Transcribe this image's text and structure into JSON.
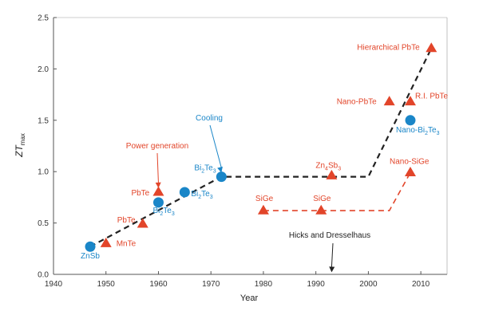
{
  "chart_data": {
    "type": "scatter",
    "title": "",
    "xlabel": "Year",
    "ylabel_main": "ZT",
    "ylabel_sub": "max",
    "xlim": [
      1940,
      2015
    ],
    "ylim": [
      0,
      2.5
    ],
    "xticks": [
      "1940",
      "1950",
      "1960",
      "1970",
      "1980",
      "1990",
      "2000",
      "2010"
    ],
    "xtick_values": [
      1940,
      1950,
      1960,
      1970,
      1980,
      1990,
      2000,
      2010
    ],
    "yticks": [
      "0.0",
      "0.5",
      "1.0",
      "1.5",
      "2.0",
      "2.5"
    ],
    "ytick_values": [
      0.0,
      0.5,
      1.0,
      1.5,
      2.0,
      2.5
    ],
    "grid": false,
    "colors": {
      "red": "#e2452a",
      "blue": "#1a86c8",
      "black": "#222222"
    },
    "series": [
      {
        "marker": "circle",
        "color": "blue",
        "points": [
          {
            "x": 1947,
            "y": 0.27,
            "label_parts": [
              {
                "t": "ZnSb"
              }
            ]
          },
          {
            "x": 1960,
            "y": 0.7,
            "label_parts": [
              {
                "t": "Bi"
              },
              {
                "t": "2",
                "sub": true
              },
              {
                "t": "Te"
              },
              {
                "t": "3",
                "sub": true
              }
            ]
          },
          {
            "x": 1965,
            "y": 0.8,
            "label_parts": [
              {
                "t": "Bi"
              },
              {
                "t": "2",
                "sub": true
              },
              {
                "t": "Te"
              },
              {
                "t": "3",
                "sub": true
              }
            ]
          },
          {
            "x": 1972,
            "y": 0.95,
            "label_parts": [
              {
                "t": "Bi"
              },
              {
                "t": "2",
                "sub": true
              },
              {
                "t": "Te"
              },
              {
                "t": "3",
                "sub": true
              }
            ]
          },
          {
            "x": 2008,
            "y": 1.5,
            "label_parts": [
              {
                "t": "Nano-Bi"
              },
              {
                "t": "2",
                "sub": true
              },
              {
                "t": "Te"
              },
              {
                "t": "3",
                "sub": true
              }
            ]
          }
        ]
      },
      {
        "marker": "triangle",
        "color": "red",
        "points": [
          {
            "x": 1950,
            "y": 0.3,
            "label_parts": [
              {
                "t": "MnTe"
              }
            ]
          },
          {
            "x": 1957,
            "y": 0.49,
            "label_parts": [
              {
                "t": "PbTe"
              }
            ]
          },
          {
            "x": 1960,
            "y": 0.8,
            "label_parts": [
              {
                "t": "PbTe"
              }
            ]
          },
          {
            "x": 1980,
            "y": 0.62,
            "label_parts": [
              {
                "t": "SiGe"
              }
            ]
          },
          {
            "x": 1991,
            "y": 0.62,
            "label_parts": [
              {
                "t": "SiGe"
              }
            ]
          },
          {
            "x": 1993,
            "y": 0.96,
            "label_parts": [
              {
                "t": "Zn"
              },
              {
                "t": "4",
                "sub": true
              },
              {
                "t": "Sb"
              },
              {
                "t": "3",
                "sub": true
              }
            ]
          },
          {
            "x": 2004,
            "y": 1.68,
            "label_parts": [
              {
                "t": "Nano-PbTe"
              }
            ]
          },
          {
            "x": 2008,
            "y": 1.68,
            "label_parts": [
              {
                "t": "R.I. PbTe"
              }
            ]
          },
          {
            "x": 2008,
            "y": 0.99,
            "label_parts": [
              {
                "t": "Nano-SiGe"
              }
            ]
          },
          {
            "x": 2012,
            "y": 2.2,
            "label_parts": [
              {
                "t": "Hierarchical PbTe"
              }
            ]
          }
        ]
      }
    ],
    "trend_lines": [
      {
        "color": "black",
        "points": [
          [
            1947,
            0.27
          ],
          [
            1972,
            0.95
          ],
          [
            2000,
            0.95
          ],
          [
            2012,
            2.2
          ]
        ]
      },
      {
        "color": "red",
        "points": [
          [
            1980,
            0.62
          ],
          [
            2004,
            0.62
          ],
          [
            2008,
            0.99
          ]
        ]
      }
    ],
    "annotations": [
      {
        "text": "Power generation",
        "color": "red",
        "target": [
          1960,
          0.84
        ]
      },
      {
        "text": "Cooling",
        "color": "blue",
        "target": [
          1972,
          0.99
        ]
      },
      {
        "text": "Hicks and Dresselhaus",
        "color": "black",
        "target": [
          1993,
          0.02
        ]
      }
    ]
  }
}
